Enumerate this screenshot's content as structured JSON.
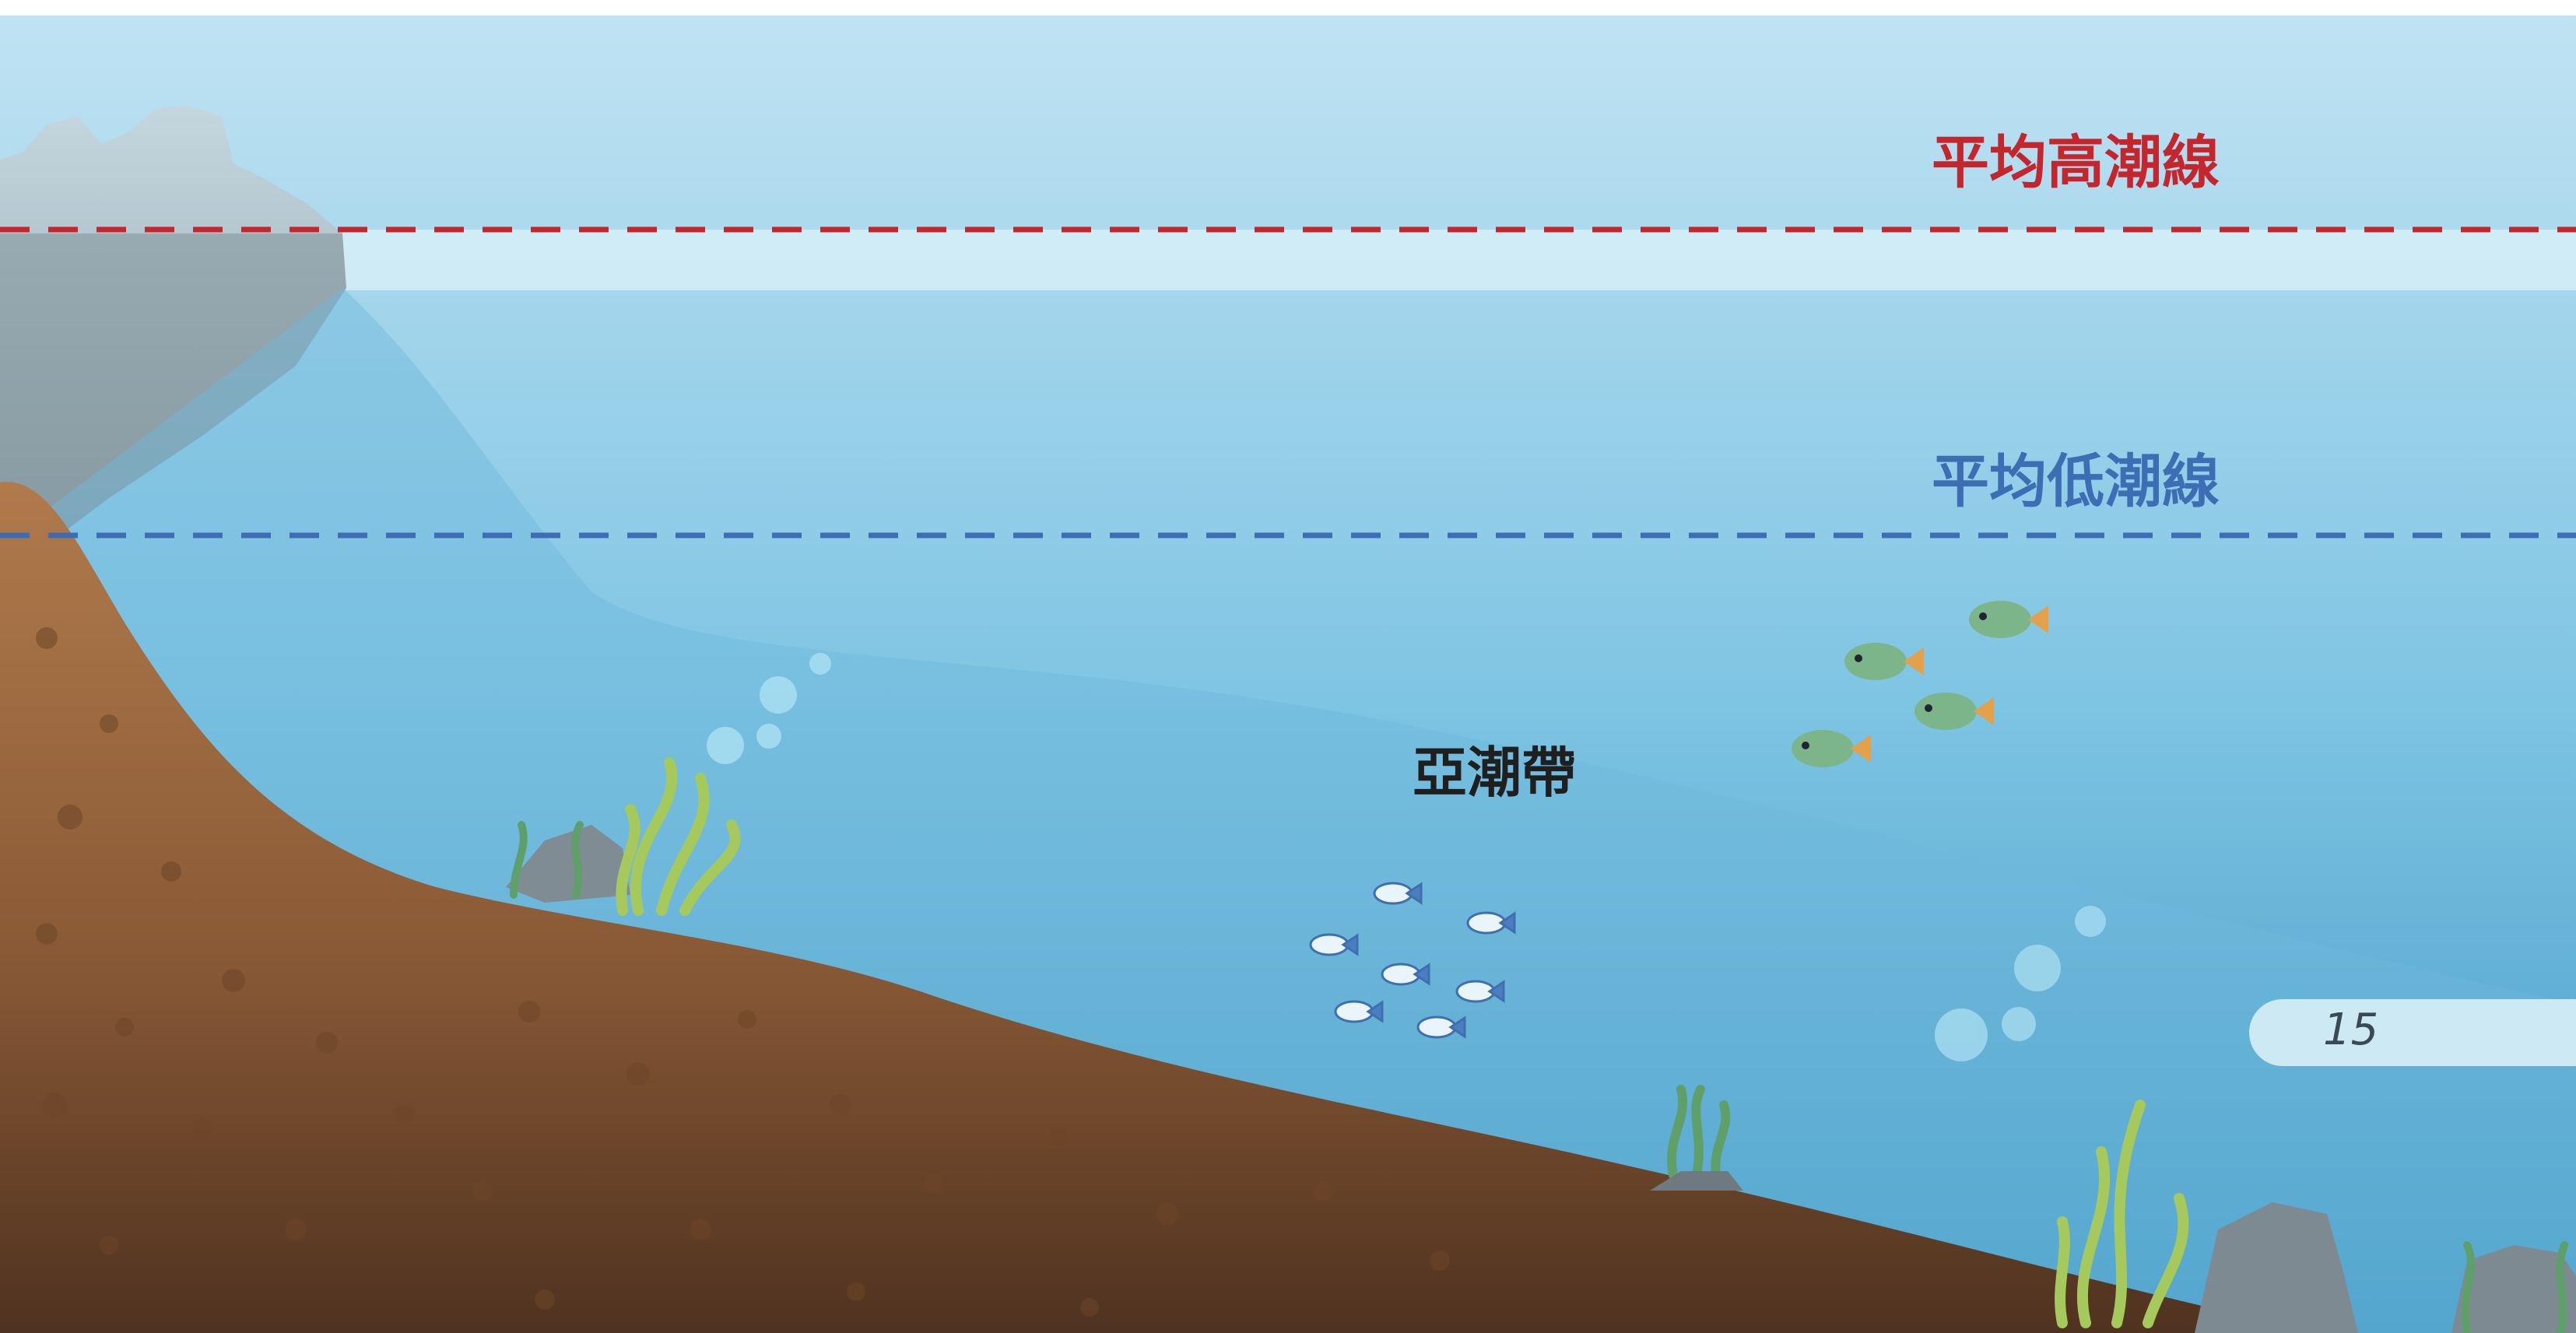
{
  "tide_lines": {
    "high": {
      "label": "平均高潮線",
      "color": "#c4262e"
    },
    "low": {
      "label": "平均低潮線",
      "color": "#3d6eb3"
    }
  },
  "zone": {
    "label": "亞潮帶"
  },
  "page_number": "15",
  "colors": {
    "sky": "#b9dff0",
    "water_top": "#a9d8ec",
    "water_deep": "#5fb3d9",
    "seabed": "#9c6a43",
    "seabed_dark": "#5a3a24",
    "rock": "#8d9ea6",
    "seaweed": "#9bc45a"
  }
}
